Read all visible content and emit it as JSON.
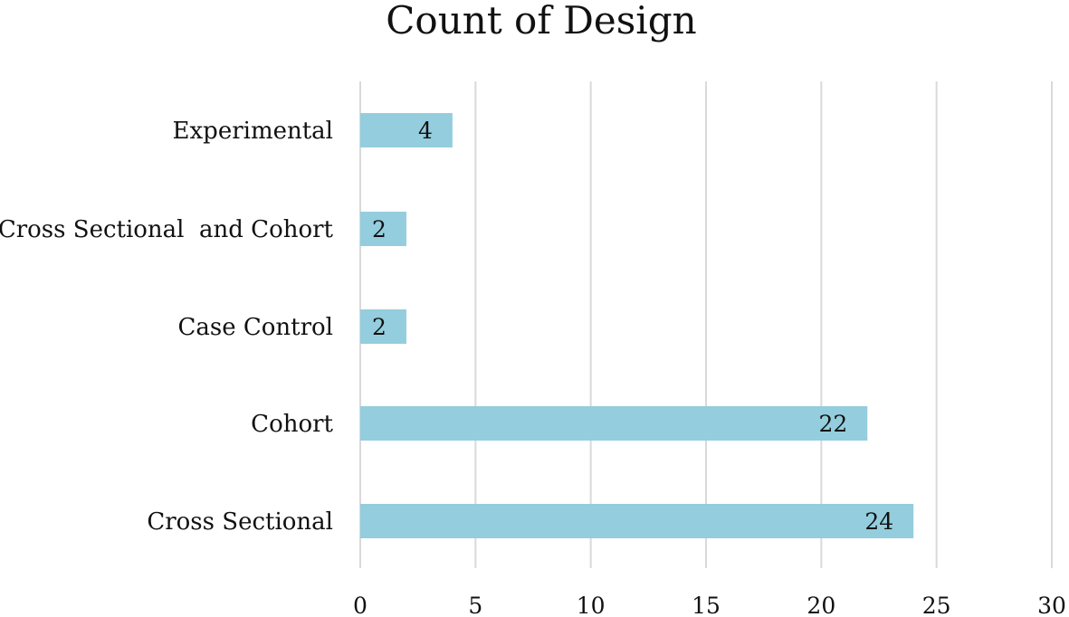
{
  "chart_data": {
    "type": "bar",
    "orientation": "horizontal",
    "title": "Count of Design",
    "categories": [
      "Experimental",
      "Cross Sectional  and Cohort",
      "Case Control",
      "Cohort",
      "Cross Sectional"
    ],
    "values": [
      4,
      2,
      2,
      22,
      24
    ],
    "data_labels": [
      "4",
      "2",
      "2",
      "22",
      "24"
    ],
    "xlim": [
      0,
      30
    ],
    "x_ticks": [
      "0",
      "5",
      "10",
      "15",
      "20",
      "25",
      "30"
    ],
    "xlabel": "",
    "ylabel": "",
    "grid": true,
    "legend": "none",
    "bar_color": "#94cddd",
    "grid_color": "#d9d9d9"
  }
}
